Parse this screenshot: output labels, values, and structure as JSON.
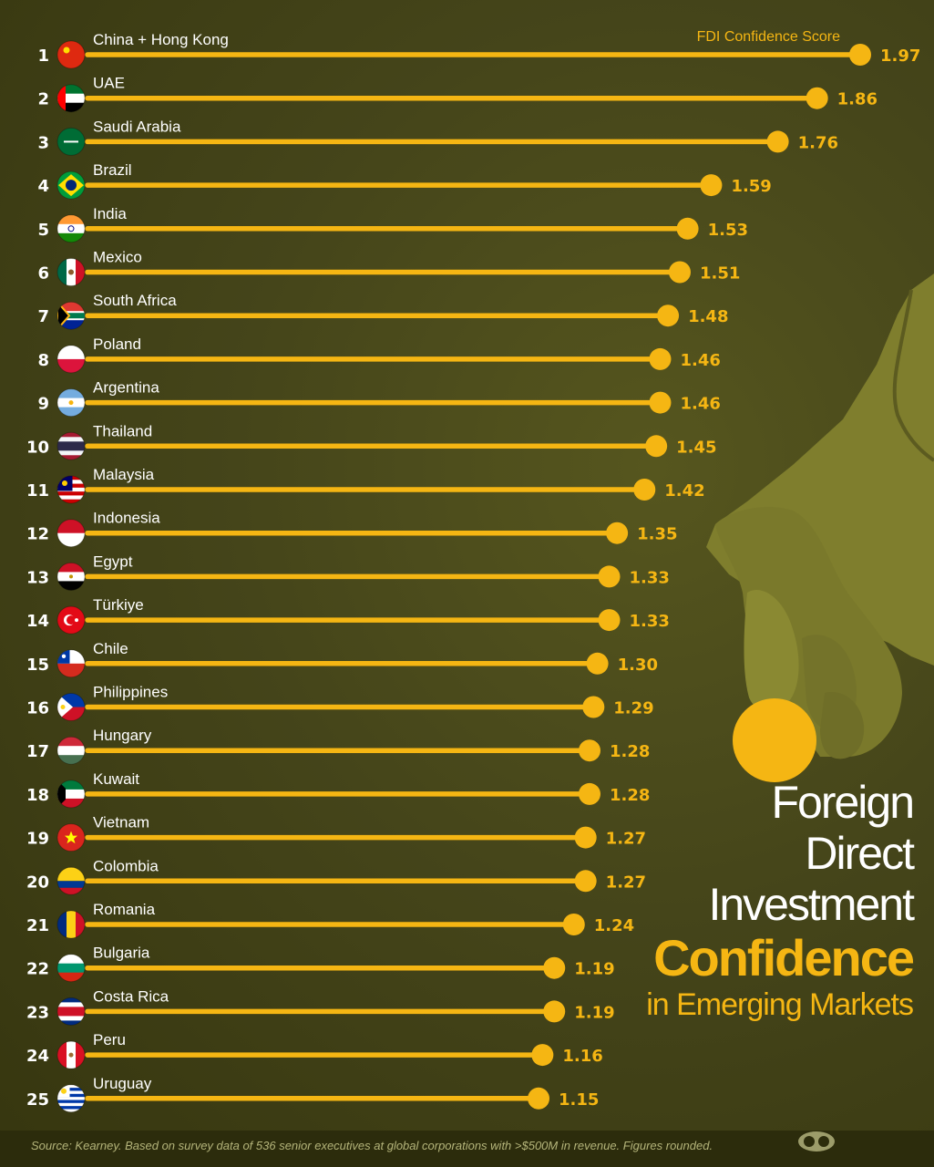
{
  "legend_label": "FDI Confidence Score",
  "title": {
    "line1": "Foreign",
    "line2": "Direct",
    "line3": "Investment",
    "line4": "Confidence",
    "line5": "in Emerging Markets"
  },
  "source": "Source: Kearney. Based on survey data of 536 senior executives at global corporations with >$500M in revenue. Figures rounded.",
  "colors": {
    "accent": "#f5b613",
    "background": "#3f3f14",
    "hand": "#7e7d2c"
  },
  "chart_data": {
    "type": "bar",
    "orientation": "horizontal",
    "style": "lollipop",
    "xlim": [
      0,
      1.97
    ],
    "grid": false,
    "categories": [
      "China + Hong Kong",
      "UAE",
      "Saudi Arabia",
      "Brazil",
      "India",
      "Mexico",
      "South Africa",
      "Poland",
      "Argentina",
      "Thailand",
      "Malaysia",
      "Indonesia",
      "Egypt",
      "Türkiye",
      "Chile",
      "Philippines",
      "Hungary",
      "Kuwait",
      "Vietnam",
      "Colombia",
      "Romania",
      "Bulgaria",
      "Costa Rica",
      "Peru",
      "Uruguay"
    ],
    "ranks": [
      "1",
      "2",
      "3",
      "4",
      "5",
      "6",
      "7",
      "8",
      "9",
      "10",
      "11",
      "12",
      "13",
      "14",
      "15",
      "16",
      "17",
      "18",
      "19",
      "20",
      "21",
      "22",
      "23",
      "24",
      "25"
    ],
    "values": [
      1.97,
      1.86,
      1.76,
      1.59,
      1.53,
      1.51,
      1.48,
      1.46,
      1.46,
      1.45,
      1.42,
      1.35,
      1.33,
      1.33,
      1.3,
      1.29,
      1.28,
      1.28,
      1.27,
      1.27,
      1.24,
      1.19,
      1.19,
      1.16,
      1.15
    ],
    "value_labels": [
      "1.97",
      "1.86",
      "1.76",
      "1.59",
      "1.53",
      "1.51",
      "1.48",
      "1.46",
      "1.46",
      "1.45",
      "1.42",
      "1.35",
      "1.33",
      "1.33",
      "1.30",
      "1.29",
      "1.28",
      "1.28",
      "1.27",
      "1.27",
      "1.24",
      "1.19",
      "1.19",
      "1.16",
      "1.15"
    ],
    "flag_icons": [
      "china-flag-icon",
      "uae-flag-icon",
      "saudi-arabia-flag-icon",
      "brazil-flag-icon",
      "india-flag-icon",
      "mexico-flag-icon",
      "south-africa-flag-icon",
      "poland-flag-icon",
      "argentina-flag-icon",
      "thailand-flag-icon",
      "malaysia-flag-icon",
      "indonesia-flag-icon",
      "egypt-flag-icon",
      "turkiye-flag-icon",
      "chile-flag-icon",
      "philippines-flag-icon",
      "hungary-flag-icon",
      "kuwait-flag-icon",
      "vietnam-flag-icon",
      "colombia-flag-icon",
      "romania-flag-icon",
      "bulgaria-flag-icon",
      "costa-rica-flag-icon",
      "peru-flag-icon",
      "uruguay-flag-icon"
    ]
  }
}
